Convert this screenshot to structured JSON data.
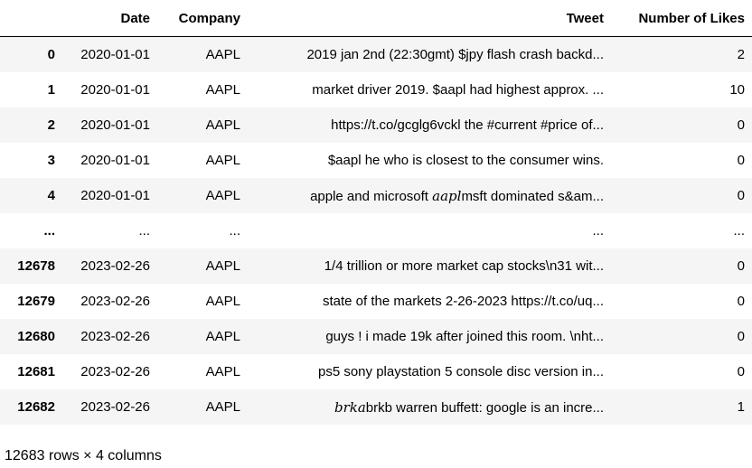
{
  "table": {
    "columns": [
      "",
      "Date",
      "Company",
      "Tweet",
      "Number of Likes"
    ],
    "rows": [
      {
        "index": "0",
        "date": "2020-01-01",
        "company": "AAPL",
        "tweet_math": "",
        "tweet": "2019 jan 2nd (22:30gmt) $jpy flash crash backd...",
        "likes": "2"
      },
      {
        "index": "1",
        "date": "2020-01-01",
        "company": "AAPL",
        "tweet_math": "",
        "tweet": "market driver 2019. $aapl had highest approx. ...",
        "likes": "10"
      },
      {
        "index": "2",
        "date": "2020-01-01",
        "company": "AAPL",
        "tweet_math": "",
        "tweet": "https://t.co/gcglg6vckl the #current #price of...",
        "likes": "0"
      },
      {
        "index": "3",
        "date": "2020-01-01",
        "company": "AAPL",
        "tweet_math": "",
        "tweet": "$aapl he who is closest to the consumer wins.",
        "likes": "0"
      },
      {
        "index": "4",
        "date": "2020-01-01",
        "company": "AAPL",
        "tweet_math": "",
        "tweet_prefix": "apple and microsoft ",
        "tweet_math_mid": "aapl",
        "tweet": "msft dominated s&am...",
        "likes": "0"
      },
      {
        "index": "...",
        "date": "...",
        "company": "...",
        "tweet_math": "",
        "tweet": "...",
        "likes": "..."
      },
      {
        "index": "12678",
        "date": "2023-02-26",
        "company": "AAPL",
        "tweet_math": "",
        "tweet": "1/4 trillion or more market cap stocks\\n31 wit...",
        "likes": "0"
      },
      {
        "index": "12679",
        "date": "2023-02-26",
        "company": "AAPL",
        "tweet_math": "",
        "tweet": "state of the markets 2-26-2023 https://t.co/uq...",
        "likes": "0"
      },
      {
        "index": "12680",
        "date": "2023-02-26",
        "company": "AAPL",
        "tweet_math": "",
        "tweet": "guys ! i made 19k after joined this room. \\nht...",
        "likes": "0"
      },
      {
        "index": "12681",
        "date": "2023-02-26",
        "company": "AAPL",
        "tweet_math": "",
        "tweet": "ps5 sony playstation 5 console disc version in...",
        "likes": "0"
      },
      {
        "index": "12682",
        "date": "2023-02-26",
        "company": "AAPL",
        "tweet_math": "brka",
        "tweet": "brkb warren buffett: google is an incre...",
        "likes": "1"
      }
    ]
  },
  "shape_text": "12683 rows × 4 columns"
}
